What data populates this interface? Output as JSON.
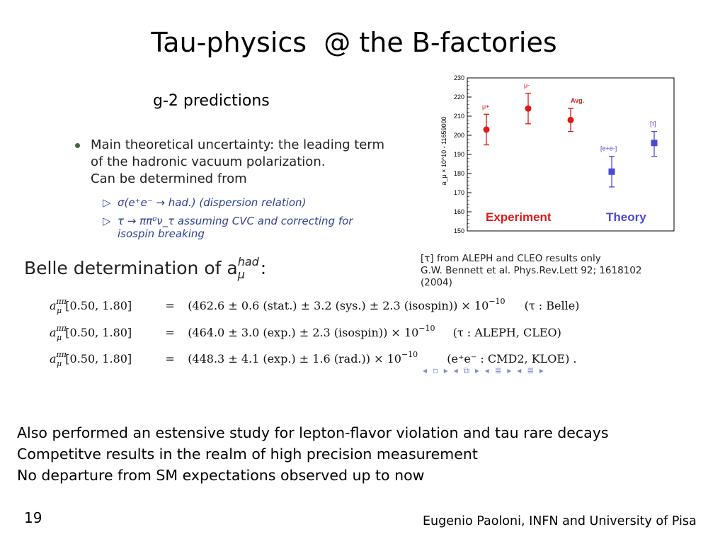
{
  "slide": {
    "title": "Tau-physics  @ the B-factories",
    "subtitle": "g-2 predictions",
    "bullet": {
      "line1": "Main theoretical uncertainty: the leading term",
      "line2": "of the hadronic vacuum polarization.",
      "line3": "Can be determined from"
    },
    "sub_items": [
      "σ(e⁺e⁻ → had.) (dispersion relation)",
      "τ → ππ⁰ν_τ assuming CVC and correcting for isospin breaking"
    ],
    "sub_marker": "▷",
    "belle_heading": {
      "text": "Belle determination of a",
      "sup": "had",
      "sub": "μ",
      "colon": ":"
    },
    "caption": [
      "[τ] from ALEPH and CLEO results only",
      "G.W. Bennett et al. Phys.Rev.Lett 92; 1618102",
      "(2004)"
    ],
    "equations": [
      {
        "lhs": "[0.50, 1.80]",
        "eq": "=",
        "rhs": "(462.6 ± 0.6 (stat.) ± 3.2 (sys.) ± 2.3 (isospin)) × 10",
        "exp": "−10",
        "tag": "(τ : Belle)"
      },
      {
        "lhs": "[0.50, 1.80]",
        "eq": "=",
        "rhs": "(464.0 ± 3.0 (exp.) ± 2.3 (isospin)) × 10",
        "exp": "−10",
        "tag": "(τ : ALEPH, CLEO)"
      },
      {
        "lhs": "[0.50, 1.80]",
        "eq": "=",
        "rhs": "(448.3 ± 4.1 (exp.) ± 1.6 (rad.)) × 10",
        "exp": "−10",
        "tag": "(e⁺e⁻ : CMD2, KLOE) ."
      }
    ],
    "eq_symbol": {
      "base": "a",
      "sup": "ππ",
      "sub": "μ"
    },
    "nav_symbols": "◂ ▫ ▸ ◂ ⧉ ▸ ◂ ≣ ▸ ◂ ≣ ▸",
    "conclusions": [
      "Also performed an estensive study for lepton-flavor violation and tau rare decays",
      "Competitve results in the realm of high precision measurement",
      "No departure from SM expectations observed up to now"
    ],
    "page_number": "19",
    "footer": "Eugenio Paoloni, INFN and University of Pisa"
  },
  "chart_data": {
    "type": "scatter",
    "ylabel": "a_μ × 10^10 - 11659000",
    "ylim": [
      150,
      230
    ],
    "yticks": [
      150,
      160,
      170,
      180,
      190,
      200,
      210,
      220,
      230
    ],
    "points": [
      {
        "label": "μ+",
        "y": 203,
        "err_low": 8,
        "err_high": 8,
        "group": "Experiment",
        "color": "#e01818",
        "marker": "circle"
      },
      {
        "label": "μ-",
        "y": 214,
        "err_low": 8,
        "err_high": 8,
        "group": "Experiment",
        "color": "#e01818",
        "marker": "circle"
      },
      {
        "label": "Avg.",
        "y": 208,
        "err_low": 6,
        "err_high": 6,
        "group": "Experiment",
        "color": "#e01818",
        "marker": "circle"
      },
      {
        "label": "[e+e-]",
        "y": 181,
        "err_low": 8,
        "err_high": 8,
        "group": "Theory",
        "color": "#4a4ad8",
        "marker": "square"
      },
      {
        "label": "[τ]",
        "y": 196,
        "err_low": 7,
        "err_high": 6,
        "group": "Theory",
        "color": "#4a4ad8",
        "marker": "square"
      }
    ],
    "group_labels": [
      {
        "text": "Experiment",
        "color": "#e01818"
      },
      {
        "text": "Theory",
        "color": "#4a4ad8"
      }
    ]
  }
}
